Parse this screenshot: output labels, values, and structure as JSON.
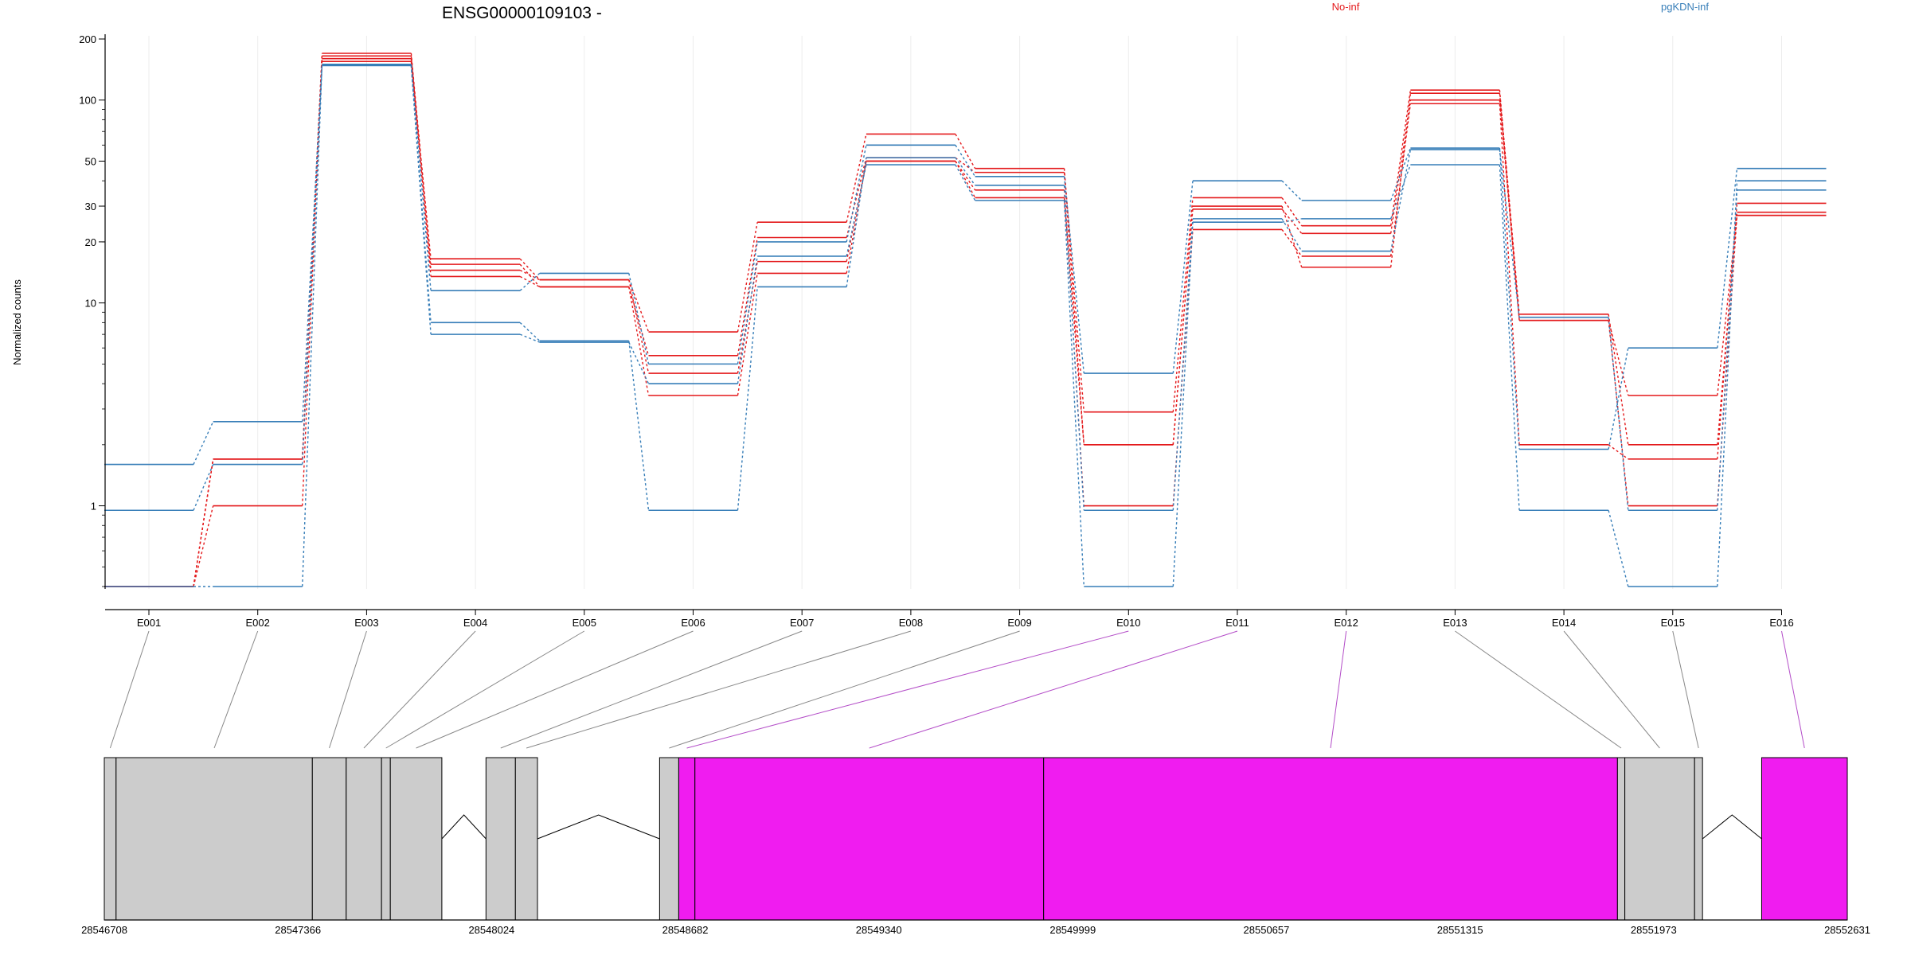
{
  "chart_data": {
    "type": "line",
    "title": "ENSG00000109103 -",
    "ylabel": "Normalized counts",
    "yscale": "log",
    "ylim": [
      0.4,
      200
    ],
    "y_ticks": [
      "1",
      "10",
      "20",
      "30",
      "50",
      "100",
      "200"
    ],
    "categories": [
      "E001",
      "E002",
      "E003",
      "E004",
      "E005",
      "E006",
      "E007",
      "E008",
      "E009",
      "E010",
      "E011",
      "E012",
      "E013",
      "E014",
      "E015",
      "E016"
    ],
    "legend": [
      {
        "name": "No-inf",
        "color": "#e41a1c"
      },
      {
        "name": "pgKDN-inf",
        "color": "#377eb8"
      }
    ],
    "series": [
      {
        "group": "No-inf",
        "values": [
          0.4,
          1.0,
          160,
          16.5,
          13,
          7.2,
          25,
          68,
          46,
          2.9,
          33,
          24,
          112,
          8.8,
          2.0,
          28
        ]
      },
      {
        "group": "No-inf",
        "values": [
          0.4,
          1.7,
          170,
          15.5,
          12,
          5.5,
          21,
          52,
          44,
          2.0,
          29,
          22,
          100,
          8.2,
          3.5,
          27
        ]
      },
      {
        "group": "No-inf",
        "values": [
          0.4,
          1.7,
          155,
          14.5,
          13,
          4.5,
          16,
          50,
          36,
          1.0,
          23,
          17,
          96,
          2.0,
          1.7,
          31
        ]
      },
      {
        "group": "No-inf",
        "values": [
          0.4,
          1.7,
          165,
          13.5,
          12,
          3.5,
          14,
          50,
          33,
          2.0,
          30,
          15,
          108,
          8.2,
          1.0,
          27
        ]
      },
      {
        "group": "pgKDN-inf",
        "values": [
          1.6,
          2.6,
          150,
          11.5,
          14,
          5.0,
          20,
          60,
          42,
          4.5,
          40,
          32,
          58,
          1.9,
          6.0,
          46
        ]
      },
      {
        "group": "pgKDN-inf",
        "values": [
          0.95,
          1.6,
          148,
          8.0,
          6.5,
          0.95,
          12,
          52,
          38,
          0.95,
          26,
          18,
          57,
          8.5,
          0.95,
          36
        ]
      },
      {
        "group": "pgKDN-inf",
        "values": [
          0.4,
          0.4,
          148,
          7.0,
          6.4,
          4.0,
          17,
          48,
          32,
          0.4,
          25,
          26,
          48,
          0.95,
          0.4,
          40
        ]
      }
    ],
    "gene_model": {
      "type": "exon-track",
      "coordinate_ticks": [
        "28546708",
        "28547366",
        "28548024",
        "28548682",
        "28549340",
        "28549999",
        "28550657",
        "28551315",
        "28551973",
        "28552631"
      ],
      "coordinate_range": [
        28546708,
        28552631
      ],
      "highlight_color": "#f01cf0",
      "exon_fill": "#cccccc",
      "exons": [
        {
          "id": "E001",
          "start": 28546708,
          "end": 28546748,
          "highlight": false
        },
        {
          "id": "E002",
          "start": 28546748,
          "end": 28547415,
          "highlight": false
        },
        {
          "id": "E003",
          "start": 28547415,
          "end": 28547530,
          "highlight": false
        },
        {
          "id": "E004",
          "start": 28547530,
          "end": 28547650,
          "highlight": false
        },
        {
          "id": "E005",
          "start": 28547650,
          "end": 28547680,
          "highlight": false
        },
        {
          "id": "E006",
          "start": 28547680,
          "end": 28547855,
          "highlight": false
        },
        {
          "id": "E007",
          "start": 28548005,
          "end": 28548105,
          "highlight": false
        },
        {
          "id": "E008",
          "start": 28548105,
          "end": 28548180,
          "highlight": false
        },
        {
          "id": "E009",
          "start": 28548595,
          "end": 28548660,
          "highlight": false
        },
        {
          "id": "E010",
          "start": 28548660,
          "end": 28548715,
          "highlight": true
        },
        {
          "id": "E011",
          "start": 28548715,
          "end": 28549900,
          "highlight": true
        },
        {
          "id": "E012",
          "start": 28549900,
          "end": 28551850,
          "highlight": true
        },
        {
          "id": "E013",
          "start": 28551850,
          "end": 28551875,
          "highlight": false
        },
        {
          "id": "E014",
          "start": 28551875,
          "end": 28552112,
          "highlight": false
        },
        {
          "id": "E015",
          "start": 28552112,
          "end": 28552139,
          "highlight": false
        },
        {
          "id": "E016",
          "start": 28552340,
          "end": 28552631,
          "highlight": true
        }
      ]
    }
  }
}
